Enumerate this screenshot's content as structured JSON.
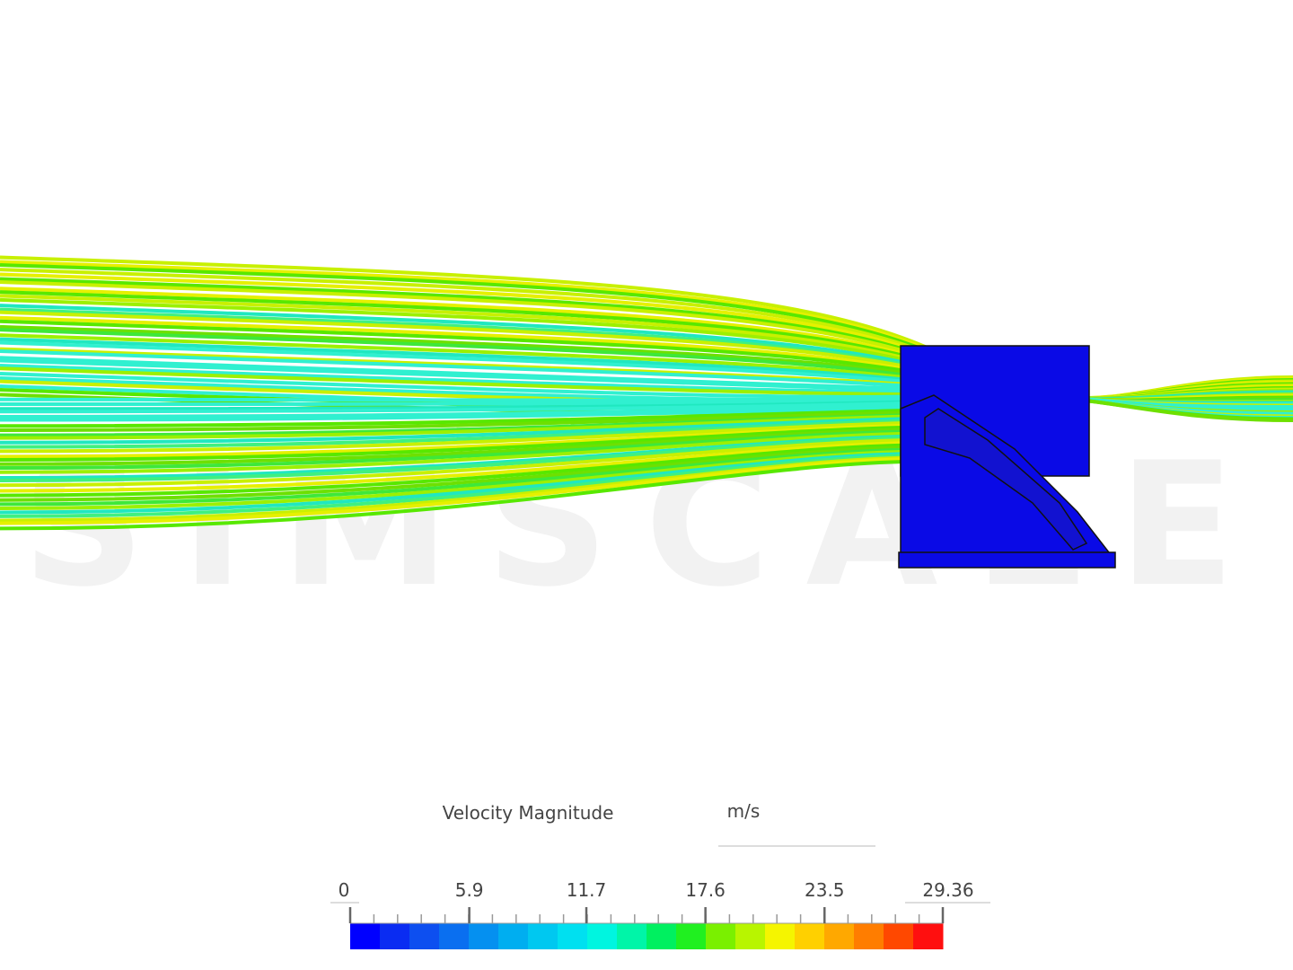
{
  "watermark": "SIMSCALE",
  "legend": {
    "title": "Velocity Magnitude",
    "unit": "m/s",
    "range": [
      0,
      29.36
    ],
    "ticks": [
      0,
      5.9,
      11.7,
      17.6,
      23.5,
      29.36
    ],
    "colors": [
      "#0000ff",
      "#0a2cf2",
      "#0d4ff0",
      "#0a6ff0",
      "#0590f0",
      "#00aef0",
      "#00c8f0",
      "#00e0f0",
      "#00f5e0",
      "#00f5a8",
      "#00f060",
      "#20f020",
      "#7af000",
      "#b8f500",
      "#f5f500",
      "#ffd000",
      "#ffa800",
      "#ff7d00",
      "#ff4800",
      "#ff0f0f"
    ]
  }
}
